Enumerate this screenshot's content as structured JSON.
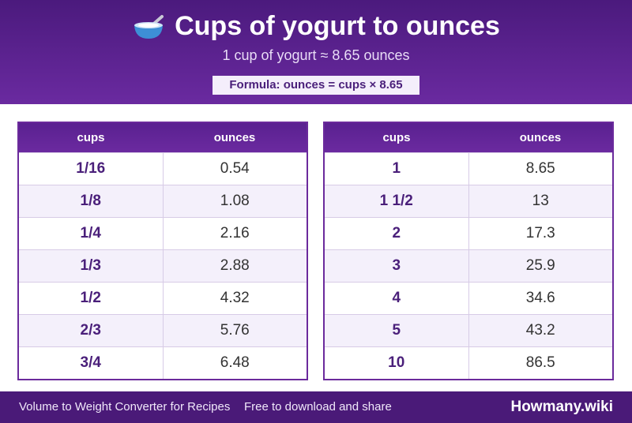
{
  "header": {
    "icon": "bowl-with-spoon-icon",
    "title": "Cups of yogurt to ounces",
    "subtitle": "1 cup of yogurt ≈ 8.65 ounces",
    "formula": "Formula: ounces = cups × 8.65"
  },
  "tables": [
    {
      "headers": [
        "cups",
        "ounces"
      ],
      "rows": [
        [
          "1/16",
          "0.54"
        ],
        [
          "1/8",
          "1.08"
        ],
        [
          "1/4",
          "2.16"
        ],
        [
          "1/3",
          "2.88"
        ],
        [
          "1/2",
          "4.32"
        ],
        [
          "2/3",
          "5.76"
        ],
        [
          "3/4",
          "6.48"
        ]
      ]
    },
    {
      "headers": [
        "cups",
        "ounces"
      ],
      "rows": [
        [
          "1",
          "8.65"
        ],
        [
          "1 1/2",
          "13"
        ],
        [
          "2",
          "17.3"
        ],
        [
          "3",
          "25.9"
        ],
        [
          "4",
          "34.6"
        ],
        [
          "5",
          "43.2"
        ],
        [
          "10",
          "86.5"
        ]
      ]
    }
  ],
  "footer": {
    "left": "Volume to Weight Converter for Recipes",
    "middle": "Free to download and share",
    "brand": "Howmany.wiki"
  },
  "colors": {
    "header_bg": "#5a2190",
    "accent": "#4a1f7a",
    "footer_bg": "#4a1a78"
  }
}
